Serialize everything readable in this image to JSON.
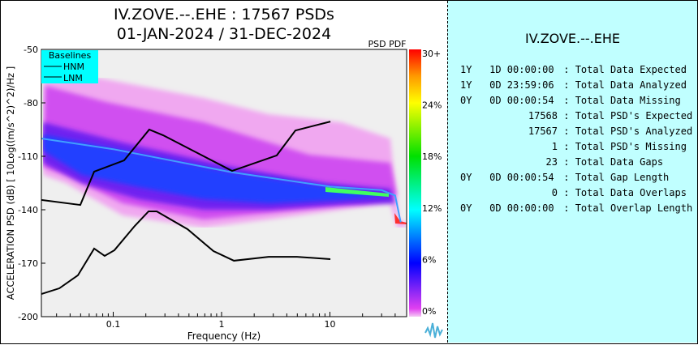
{
  "header": {
    "title_line1": "IV.ZOVE.--.EHE : 17567 PSDs",
    "title_line2": "01-JAN-2024 / 31-DEC-2024"
  },
  "stats": {
    "title": "IV.ZOVE.--.EHE",
    "rows": [
      {
        "value": "1Y   1D 00:00:00",
        "label": "Total Data Expected"
      },
      {
        "value": "1Y   0D 23:59:06",
        "label": "Total Data Analyzed"
      },
      {
        "value": "0Y   0D 00:00:54",
        "label": "Total Data Missing"
      },
      {
        "value": "17568",
        "label": "Total PSD's Expected"
      },
      {
        "value": "17567",
        "label": "Total PSD's Analyzed"
      },
      {
        "value": "1",
        "label": "Total PSD's Missing"
      },
      {
        "value": "23",
        "label": "Total Data Gaps"
      },
      {
        "value": "0Y   0D 00:00:54",
        "label": "Total Gap Length"
      },
      {
        "value": "0",
        "label": "Total Data Overlaps"
      },
      {
        "value": "0Y   0D 00:00:00",
        "label": "Total Overlap Length"
      }
    ]
  },
  "chart_data": {
    "type": "heatmap",
    "xlabel": "Frequency (Hz)",
    "ylabel": "ACCELERATION PSD (dB) [ 10Log((m/s^2)^2)/Hz ]",
    "xscale": "log",
    "xlim": [
      0.0217,
      50.6
    ],
    "ylim": [
      -200,
      -50
    ],
    "xticks": [
      {
        "v": 0.1,
        "l": "0.1"
      },
      {
        "v": 1,
        "l": "1"
      },
      {
        "v": 10,
        "l": "10"
      }
    ],
    "yticks": [
      -50,
      -80,
      -110,
      -140,
      -170,
      -200
    ],
    "legend": {
      "title": "Baselines",
      "placement": "top-left",
      "entries": [
        "HNM",
        "LNM"
      ]
    },
    "colorbar": {
      "title": "PSD PDF",
      "labels": [
        "30+",
        "24%",
        "18%",
        "12%",
        "6%",
        "0%"
      ]
    },
    "series": [
      {
        "name": "HNM",
        "x": [
          0.0217,
          0.0497,
          0.0667,
          0.126,
          0.215,
          0.289,
          1.25,
          3.23,
          4.8,
          10.1
        ],
        "y": [
          -134.5,
          -137.3,
          -118.6,
          -112.3,
          -95,
          -98.2,
          -118.2,
          -109.5,
          -95.5,
          -90.5
        ]
      },
      {
        "name": "LNM",
        "x": [
          0.0217,
          0.0318,
          0.0472,
          0.0667,
          0.0834,
          0.1026,
          0.158,
          0.212,
          0.252,
          0.485,
          0.841,
          1.3,
          2.72,
          4.97,
          10.1
        ],
        "y": [
          -187.3,
          -184.1,
          -176.8,
          -161.8,
          -165.9,
          -162.7,
          -149.1,
          -140.9,
          -140.9,
          -150.9,
          -163.2,
          -168.6,
          -166.4,
          -166.4,
          -167.7
        ]
      }
    ],
    "mode": {
      "x": [
        0.0217,
        0.1,
        1.25,
        10,
        30,
        40,
        45
      ],
      "y": [
        -100,
        -106,
        -119,
        -127,
        -129,
        -132,
        -147
      ]
    }
  }
}
